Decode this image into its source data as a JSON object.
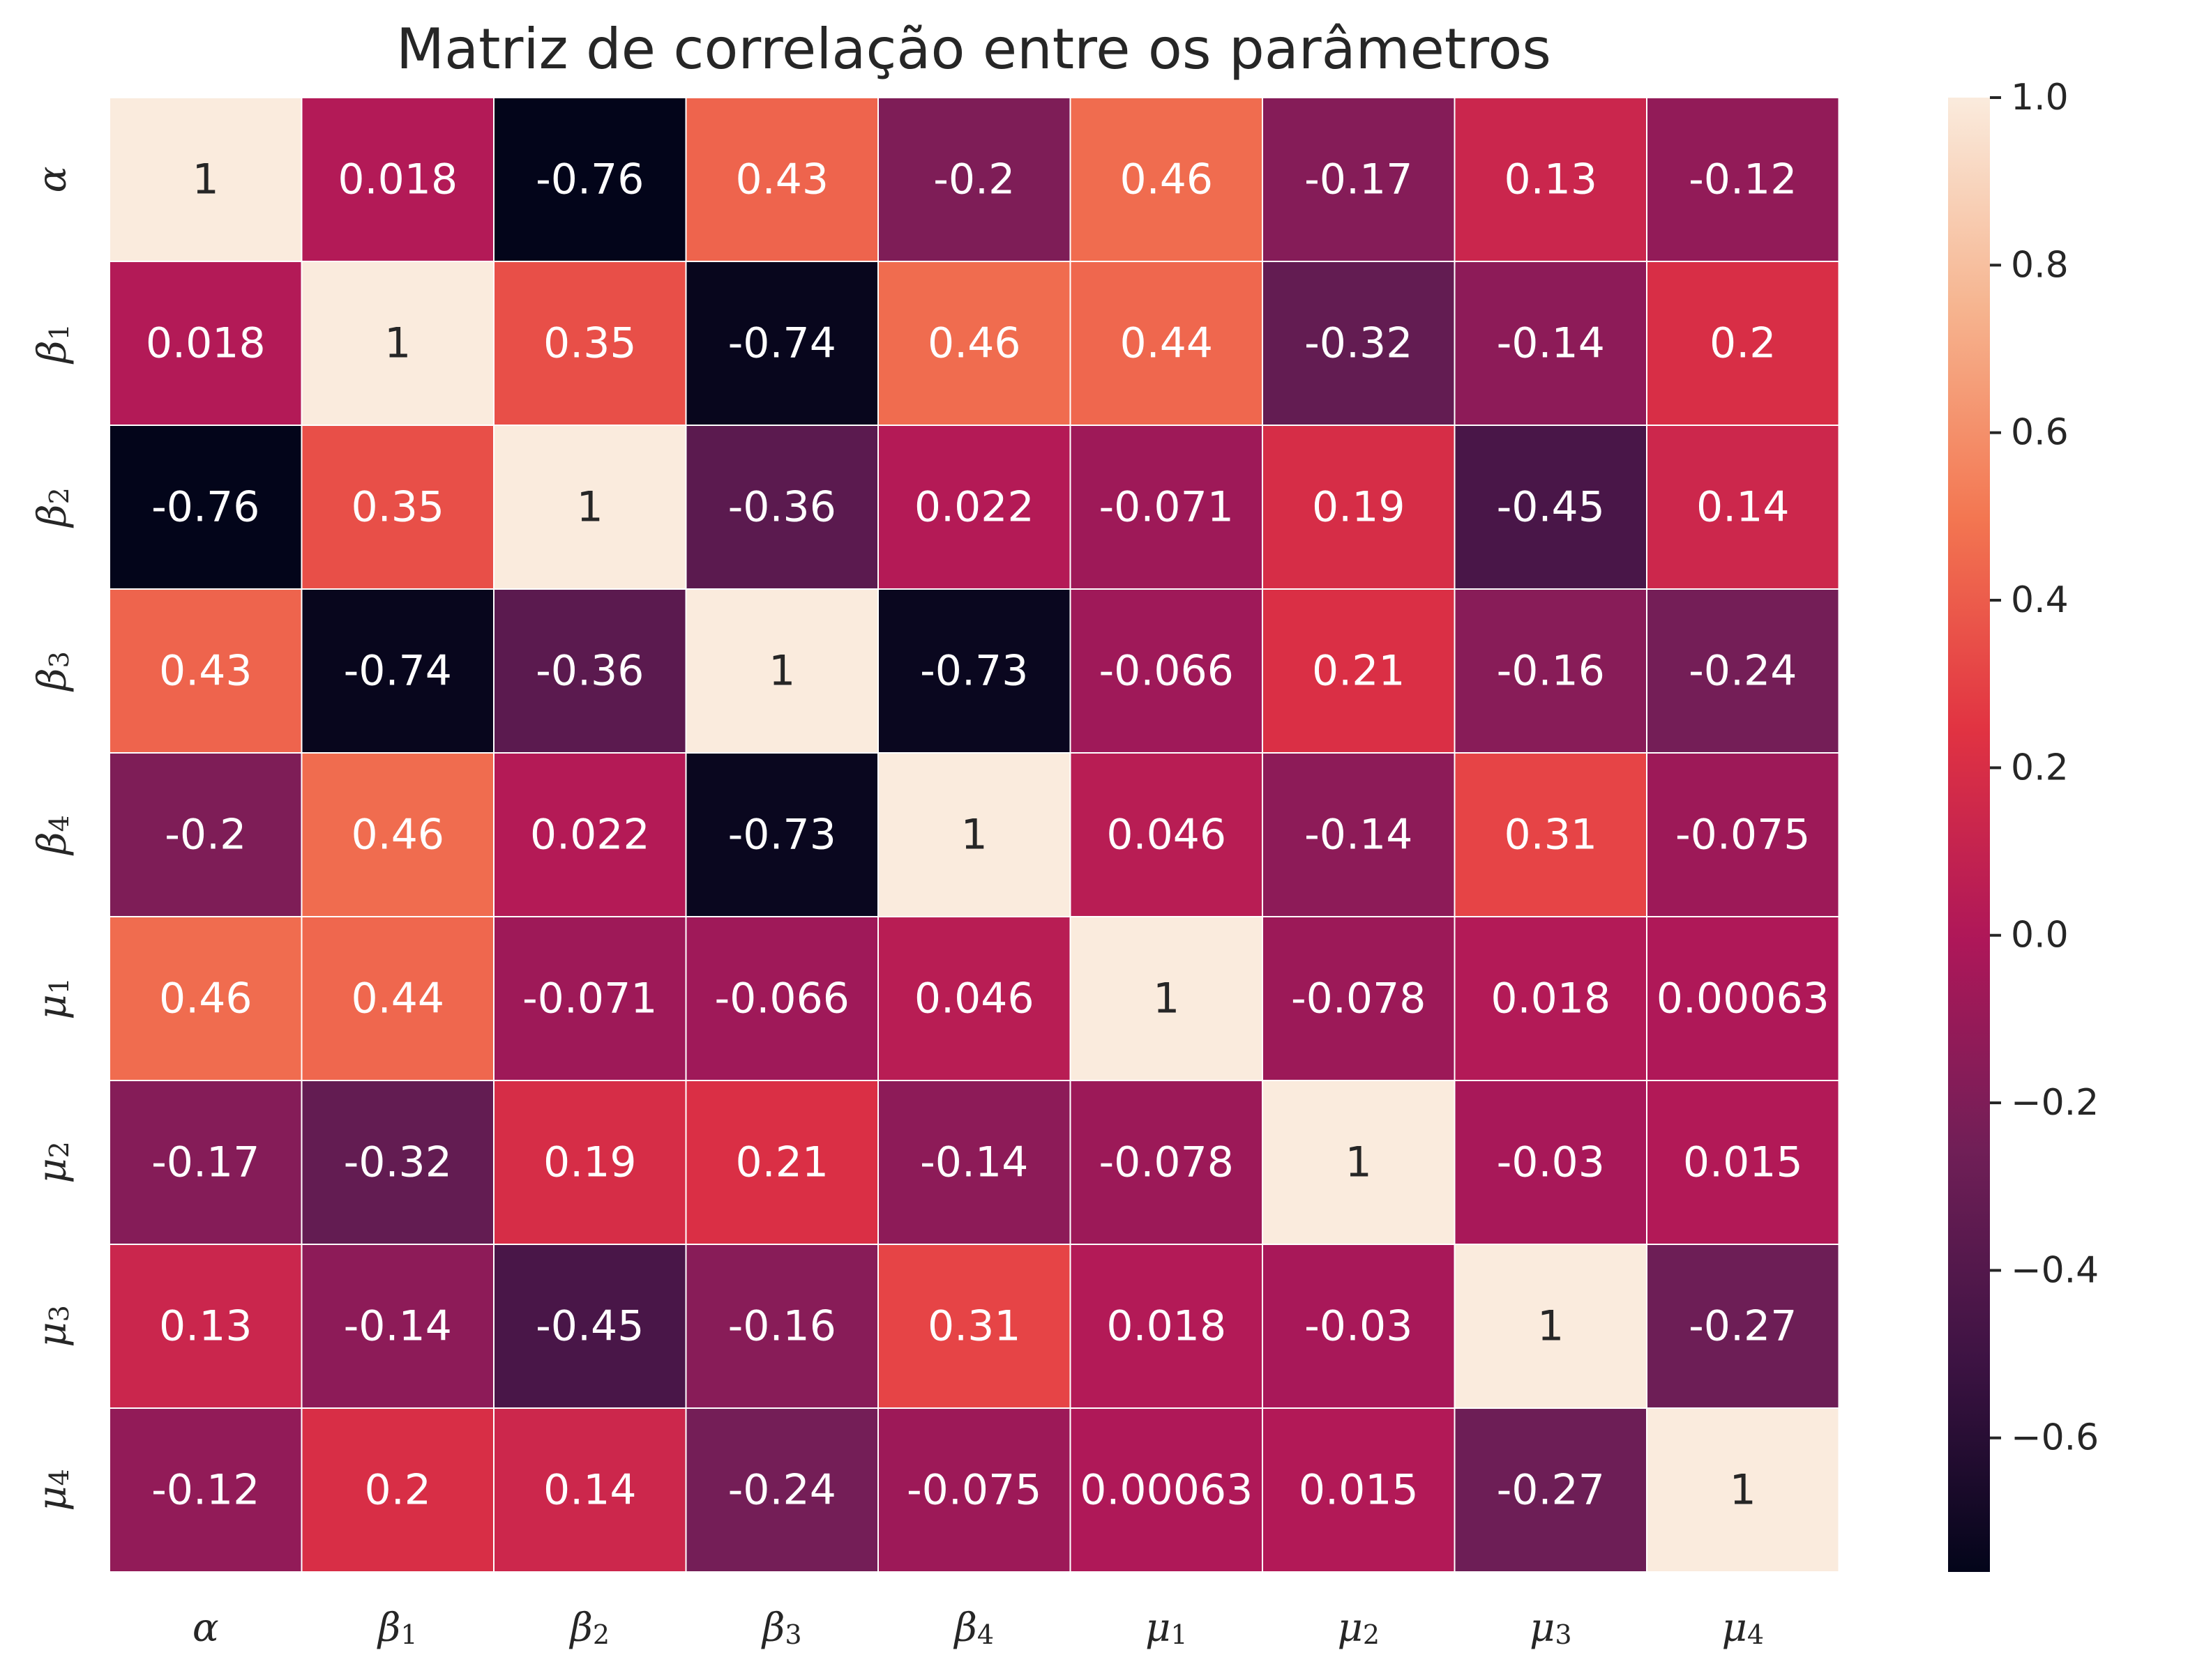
{
  "chart_data": {
    "type": "heatmap",
    "title": "Matriz de correlação entre os parâmetros",
    "labels": [
      {
        "base": "α",
        "sub": ""
      },
      {
        "base": "β",
        "sub": "1"
      },
      {
        "base": "β",
        "sub": "2"
      },
      {
        "base": "β",
        "sub": "3"
      },
      {
        "base": "β",
        "sub": "4"
      },
      {
        "base": "μ",
        "sub": "1"
      },
      {
        "base": "μ",
        "sub": "2"
      },
      {
        "base": "μ",
        "sub": "3"
      },
      {
        "base": "μ",
        "sub": "4"
      }
    ],
    "values": [
      [
        1,
        0.018,
        -0.76,
        0.43,
        -0.2,
        0.46,
        -0.17,
        0.13,
        -0.12
      ],
      [
        0.018,
        1,
        0.35,
        -0.74,
        0.46,
        0.44,
        -0.32,
        -0.14,
        0.2
      ],
      [
        -0.76,
        0.35,
        1,
        -0.36,
        0.022,
        -0.071,
        0.19,
        -0.45,
        0.14
      ],
      [
        0.43,
        -0.74,
        -0.36,
        1,
        -0.73,
        -0.066,
        0.21,
        -0.16,
        -0.24
      ],
      [
        -0.2,
        0.46,
        0.022,
        -0.73,
        1,
        0.046,
        -0.14,
        0.31,
        -0.075
      ],
      [
        0.46,
        0.44,
        -0.071,
        -0.066,
        0.046,
        1,
        -0.078,
        0.018,
        0.00063
      ],
      [
        -0.17,
        -0.32,
        0.19,
        0.21,
        -0.14,
        -0.078,
        1,
        -0.03,
        0.015
      ],
      [
        0.13,
        -0.14,
        -0.45,
        -0.16,
        0.31,
        0.018,
        -0.03,
        1,
        -0.27
      ],
      [
        -0.12,
        0.2,
        0.14,
        -0.24,
        -0.075,
        0.00063,
        0.015,
        -0.27,
        1
      ]
    ],
    "annotations": [
      [
        "1",
        "0.018",
        "-0.76",
        "0.43",
        "-0.2",
        "0.46",
        "-0.17",
        "0.13",
        "-0.12"
      ],
      [
        "0.018",
        "1",
        "0.35",
        "-0.74",
        "0.46",
        "0.44",
        "-0.32",
        "-0.14",
        "0.2"
      ],
      [
        "-0.76",
        "0.35",
        "1",
        "-0.36",
        "0.022",
        "-0.071",
        "0.19",
        "-0.45",
        "0.14"
      ],
      [
        "0.43",
        "-0.74",
        "-0.36",
        "1",
        "-0.73",
        "-0.066",
        "0.21",
        "-0.16",
        "-0.24"
      ],
      [
        "-0.2",
        "0.46",
        "0.022",
        "-0.73",
        "1",
        "0.046",
        "-0.14",
        "0.31",
        "-0.075"
      ],
      [
        "0.46",
        "0.44",
        "-0.071",
        "-0.066",
        "0.046",
        "1",
        "-0.078",
        "0.018",
        "0.00063"
      ],
      [
        "-0.17",
        "-0.32",
        "0.19",
        "0.21",
        "-0.14",
        "-0.078",
        "1",
        "-0.03",
        "0.015"
      ],
      [
        "0.13",
        "-0.14",
        "-0.45",
        "-0.16",
        "0.31",
        "0.018",
        "-0.03",
        "1",
        "-0.27"
      ],
      [
        "-0.12",
        "0.2",
        "0.14",
        "-0.24",
        "-0.075",
        "0.00063",
        "0.015",
        "-0.27",
        "1"
      ]
    ],
    "colorbar": {
      "vmin": -0.76,
      "vmax": 1.0,
      "ticks": [
        1.0,
        0.8,
        0.6,
        0.4,
        0.2,
        0.0,
        -0.2,
        -0.4,
        -0.6
      ],
      "tick_labels": [
        "1.0",
        "0.8",
        "0.6",
        "0.4",
        "0.2",
        "0.0",
        "−0.2",
        "−0.4",
        "−0.6"
      ]
    },
    "colormap": "rocket",
    "colormap_stops": [
      "#03051a",
      "#3d1343",
      "#701f57",
      "#ae1759",
      "#e13342",
      "#f37651",
      "#f6b48f",
      "#faebdd"
    ],
    "grid_line_color": "#ffffff",
    "annotation_color_dark": "#262626",
    "annotation_color_light": "#ffffff"
  }
}
